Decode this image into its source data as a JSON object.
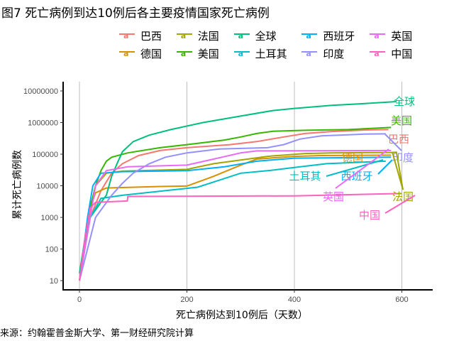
{
  "title": "图7 死亡病例到达10例后各主要疫情国家死亡病例",
  "source": "来源：约翰霍普金斯大学、第一财经研究院计算",
  "chart_data": {
    "type": "line",
    "title": "图7 死亡病例到达10例后各主要疫情国家死亡病例",
    "xlabel": "死亡病例达到10例后（天数）",
    "ylabel": "累计死亡病例数",
    "xlim": [
      -30,
      650
    ],
    "ylim_log10": [
      0.6,
      7.3
    ],
    "yscale": "log10",
    "x_ticks": [
      0,
      200,
      400,
      600
    ],
    "x_tick_labels": [
      "0",
      "200",
      "400",
      "600"
    ],
    "y_ticks": [
      10,
      100,
      1000,
      10000,
      100000,
      1000000,
      10000000
    ],
    "y_tick_labels": [
      "10",
      "100",
      "1000",
      "10000",
      "100000",
      "1000000",
      "10000000"
    ],
    "grid": "vertical major",
    "legend_position": "top",
    "series": [
      {
        "name": "巴西",
        "color": "#F8766D",
        "x": [
          0,
          20,
          40,
          60,
          80,
          110,
          150,
          200,
          280,
          330,
          380,
          420,
          470,
          530,
          575
        ],
        "y": [
          10,
          1000,
          7000,
          25000,
          50000,
          90000,
          130000,
          160000,
          200000,
          250000,
          350000,
          450000,
          520000,
          580000,
          600000
        ]
      },
      {
        "name": "德国",
        "color": "#D89000",
        "x": [
          0,
          20,
          30,
          50,
          150,
          200,
          250,
          300,
          330,
          400,
          450,
          580
        ],
        "y": [
          10,
          2000,
          6000,
          8500,
          9500,
          9800,
          20000,
          45000,
          70000,
          85000,
          90000,
          93000
        ]
      },
      {
        "name": "法国",
        "color": "#A3A500",
        "x": [
          0,
          20,
          30,
          50,
          80,
          200,
          250,
          300,
          350,
          420,
          470,
          580,
          590,
          602
        ],
        "y": [
          10,
          2000,
          10000,
          25000,
          29000,
          33000,
          50000,
          65000,
          85000,
          105000,
          110000,
          113000,
          115000,
          7500
        ]
      },
      {
        "name": "美国",
        "color": "#39B600",
        "x": [
          0,
          20,
          30,
          40,
          50,
          60,
          90,
          150,
          200,
          270,
          300,
          330,
          360,
          420,
          500,
          580
        ],
        "y": [
          10,
          2000,
          10000,
          30000,
          60000,
          80000,
          110000,
          160000,
          200000,
          280000,
          350000,
          450000,
          530000,
          570000,
          600000,
          700000
        ]
      },
      {
        "name": "全球",
        "color": "#00BF7D",
        "x": [
          0,
          10,
          20,
          40,
          50,
          60,
          70,
          80,
          100,
          130,
          170,
          230,
          300,
          360,
          400,
          470,
          520,
          590
        ],
        "y": [
          17,
          200,
          1000,
          3000,
          5000,
          20000,
          50000,
          120000,
          250000,
          400000,
          600000,
          1000000,
          1600000,
          2400000,
          2800000,
          3500000,
          3900000,
          4600000
        ]
      },
      {
        "name": "土耳其",
        "color": "#00BFC4",
        "x": [
          0,
          20,
          40,
          80,
          220,
          260,
          300,
          350,
          400,
          460,
          570
        ],
        "y": [
          10,
          1000,
          4000,
          5000,
          9000,
          15000,
          25000,
          30000,
          38000,
          50000,
          60000
        ]
      },
      {
        "name": "西班牙",
        "color": "#00B0F6",
        "x": [
          0,
          15,
          25,
          40,
          80,
          200,
          270,
          330,
          400,
          580
        ],
        "y": [
          10,
          1000,
          10000,
          25000,
          28000,
          30000,
          40000,
          60000,
          75000,
          80000
        ]
      },
      {
        "name": "印度",
        "color": "#9590FF",
        "x": [
          0,
          30,
          60,
          80,
          100,
          130,
          160,
          200,
          260,
          350,
          380,
          410,
          450,
          530,
          570
        ],
        "y": [
          10,
          1000,
          5000,
          12000,
          25000,
          50000,
          80000,
          110000,
          145000,
          160000,
          200000,
          300000,
          380000,
          430000,
          440000
        ]
      },
      {
        "name": "英国",
        "color": "#E76BF3",
        "x": [
          0,
          20,
          30,
          50,
          90,
          200,
          250,
          300,
          330,
          580
        ],
        "y": [
          10,
          1000,
          10000,
          30000,
          40000,
          45000,
          70000,
          110000,
          127000,
          130000
        ]
      },
      {
        "name": "中国",
        "color": "#FF62BC",
        "x": [
          0,
          10,
          20,
          30,
          89,
          90,
          400,
          600
        ],
        "y": [
          10,
          200,
          2000,
          3000,
          3300,
          4600,
          4800,
          5700
        ]
      }
    ],
    "legend": [
      "巴西",
      "法国",
      "全球",
      "西班牙",
      "英国",
      "德国",
      "美国",
      "土耳其",
      "印度",
      "中国"
    ]
  }
}
